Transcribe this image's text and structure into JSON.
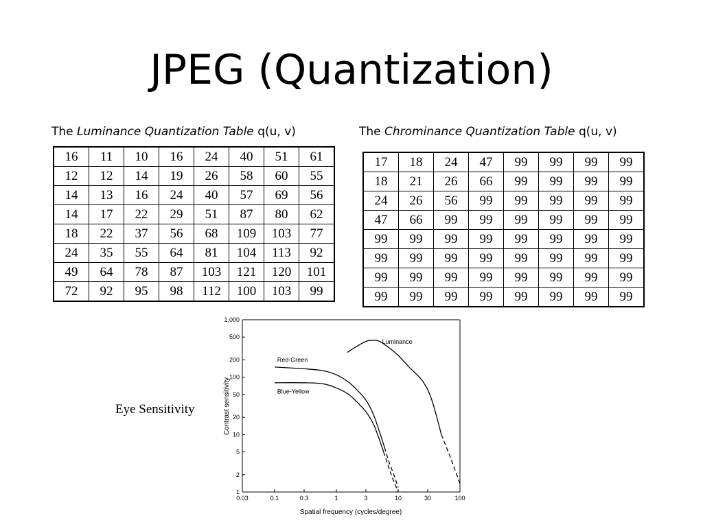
{
  "slide": {
    "title": "JPEG (Quantization)",
    "eye_label": "Eye Sensitivity"
  },
  "luminance_table": {
    "caption_prefix": "The",
    "caption_name": "Luminance Quantization Table",
    "caption_suffix": "q(u, v)",
    "rows": [
      [
        "16",
        "11",
        "10",
        "16",
        "24",
        "40",
        "51",
        "61"
      ],
      [
        "12",
        "12",
        "14",
        "19",
        "26",
        "58",
        "60",
        "55"
      ],
      [
        "14",
        "13",
        "16",
        "24",
        "40",
        "57",
        "69",
        "56"
      ],
      [
        "14",
        "17",
        "22",
        "29",
        "51",
        "87",
        "80",
        "62"
      ],
      [
        "18",
        "22",
        "37",
        "56",
        "68",
        "109",
        "103",
        "77"
      ],
      [
        "24",
        "35",
        "55",
        "64",
        "81",
        "104",
        "113",
        "92"
      ],
      [
        "49",
        "64",
        "78",
        "87",
        "103",
        "121",
        "120",
        "101"
      ],
      [
        "72",
        "92",
        "95",
        "98",
        "112",
        "100",
        "103",
        "99"
      ]
    ]
  },
  "chrominance_table": {
    "caption_prefix": "The",
    "caption_name": "Chrominance Quantization Table",
    "caption_suffix": "q(u, v)",
    "rows": [
      [
        "17",
        "18",
        "24",
        "47",
        "99",
        "99",
        "99",
        "99"
      ],
      [
        "18",
        "21",
        "26",
        "66",
        "99",
        "99",
        "99",
        "99"
      ],
      [
        "24",
        "26",
        "56",
        "99",
        "99",
        "99",
        "99",
        "99"
      ],
      [
        "47",
        "66",
        "99",
        "99",
        "99",
        "99",
        "99",
        "99"
      ],
      [
        "99",
        "99",
        "99",
        "99",
        "99",
        "99",
        "99",
        "99"
      ],
      [
        "99",
        "99",
        "99",
        "99",
        "99",
        "99",
        "99",
        "99"
      ],
      [
        "99",
        "99",
        "99",
        "99",
        "99",
        "99",
        "99",
        "99"
      ],
      [
        "99",
        "99",
        "99",
        "99",
        "99",
        "99",
        "99",
        "99"
      ]
    ]
  },
  "chart_data": {
    "type": "line",
    "xlabel": "Spatial frequency (cycles/degree)",
    "ylabel": "Contrast sensitivity",
    "x_scale": "log",
    "y_scale": "log",
    "xlim": [
      0.03,
      100
    ],
    "ylim": [
      1,
      1000
    ],
    "x_ticks": [
      {
        "value": 0.03,
        "label": "0.03"
      },
      {
        "value": 0.1,
        "label": "0.1"
      },
      {
        "value": 0.3,
        "label": "0.3"
      },
      {
        "value": 1,
        "label": "1"
      },
      {
        "value": 3,
        "label": "3"
      },
      {
        "value": 10,
        "label": "10"
      },
      {
        "value": 30,
        "label": "30"
      },
      {
        "value": 100,
        "label": "100"
      }
    ],
    "y_ticks": [
      {
        "value": 1,
        "label": "1"
      },
      {
        "value": 2,
        "label": "2"
      },
      {
        "value": 5,
        "label": "5"
      },
      {
        "value": 10,
        "label": "10"
      },
      {
        "value": 20,
        "label": "20"
      },
      {
        "value": 50,
        "label": "50"
      },
      {
        "value": 100,
        "label": "100"
      },
      {
        "value": 200,
        "label": "200"
      },
      {
        "value": 500,
        "label": "500"
      },
      {
        "value": 1000,
        "label": "1,000"
      }
    ],
    "grid": false,
    "series": [
      {
        "name": "Luminance",
        "label_at": [
          5.5,
          380
        ],
        "solid": [
          [
            1.5,
            270
          ],
          [
            2,
            330
          ],
          [
            3,
            420
          ],
          [
            4,
            440
          ],
          [
            5,
            420
          ],
          [
            7,
            330
          ],
          [
            10,
            240
          ],
          [
            15,
            150
          ],
          [
            25,
            85
          ],
          [
            35,
            40
          ],
          [
            50,
            10
          ]
        ],
        "dashed": [
          [
            50,
            10
          ],
          [
            70,
            4
          ],
          [
            100,
            1.4
          ]
        ]
      },
      {
        "name": "Red-Green",
        "label_at": [
          0.11,
          185
        ],
        "solid": [
          [
            0.1,
            150
          ],
          [
            0.3,
            140
          ],
          [
            0.6,
            130
          ],
          [
            1,
            110
          ],
          [
            1.5,
            85
          ],
          [
            2,
            65
          ],
          [
            3,
            40
          ],
          [
            4,
            22
          ],
          [
            5,
            11
          ],
          [
            6,
            6
          ]
        ],
        "dashed": [
          [
            6,
            6
          ],
          [
            7,
            3.5
          ],
          [
            8.5,
            2
          ],
          [
            10,
            1.2
          ]
        ]
      },
      {
        "name": "Blue-Yellow",
        "label_at": [
          0.11,
          52
        ],
        "solid": [
          [
            0.1,
            80
          ],
          [
            0.3,
            80
          ],
          [
            0.6,
            77
          ],
          [
            1,
            65
          ],
          [
            1.5,
            52
          ],
          [
            2,
            40
          ],
          [
            3,
            25
          ],
          [
            4,
            15
          ],
          [
            5,
            8
          ],
          [
            5.8,
            5
          ]
        ],
        "dashed": [
          [
            5.8,
            5
          ],
          [
            6.8,
            3
          ],
          [
            8,
            1.8
          ],
          [
            10,
            1
          ]
        ]
      }
    ]
  }
}
